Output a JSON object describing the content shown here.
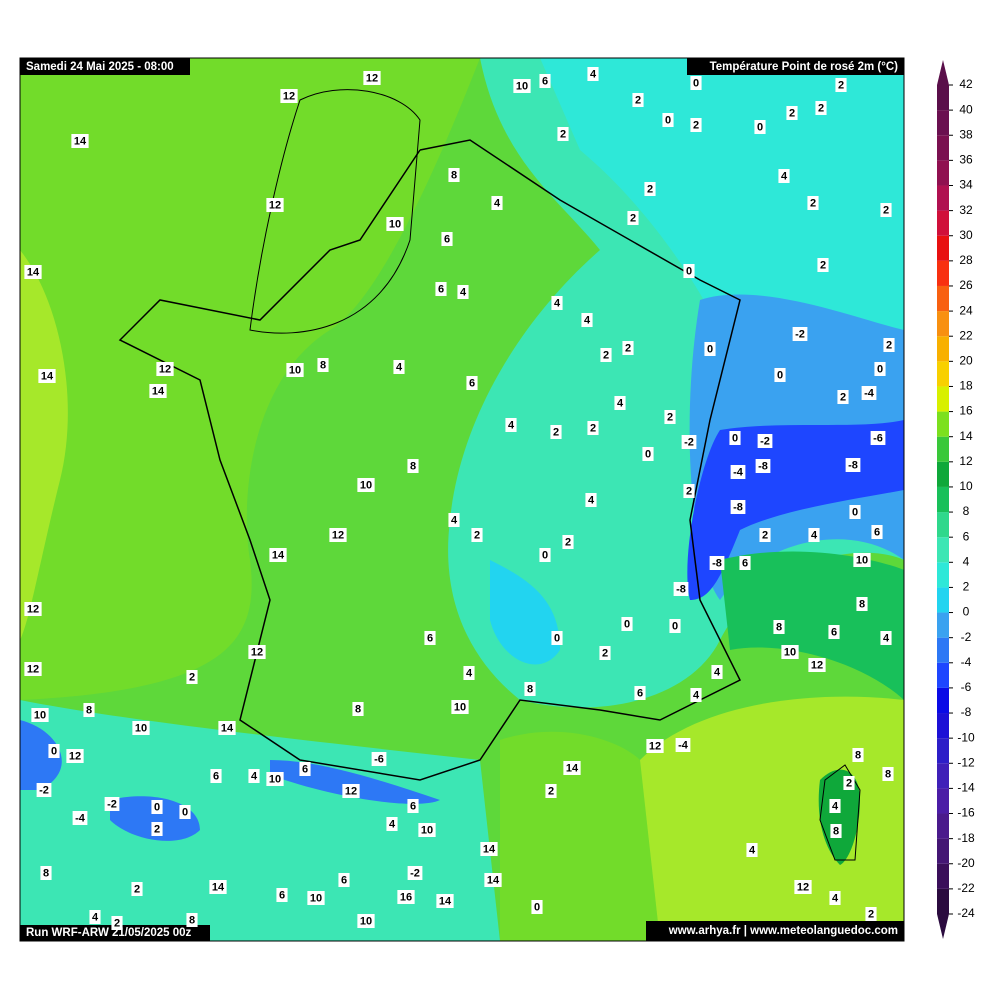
{
  "header": {
    "date": "Samedi 24 Mai 2025 - 08:00",
    "title": "Température Point de rosé 2m (°C)"
  },
  "footer": {
    "run": "Run WRF-ARW 21/05/2025 00z",
    "credits": "www.arhya.fr | www.meteolanguedoc.com"
  },
  "map": {
    "station_values": [
      12,
      10,
      6,
      4,
      0,
      2,
      12,
      2,
      0,
      2,
      0,
      2,
      2,
      14,
      2,
      8,
      4,
      2,
      4,
      2,
      2,
      12,
      10,
      2,
      6,
      2,
      14,
      0,
      6,
      4,
      4,
      4,
      -2,
      2,
      0,
      2,
      2,
      14,
      10,
      8,
      12,
      14,
      4,
      0,
      0,
      6,
      2,
      -4,
      4,
      2,
      4,
      2,
      2,
      -6,
      -2,
      0,
      -2,
      0,
      -4,
      -8,
      -8,
      8,
      10,
      2,
      4,
      -8,
      0,
      4,
      2,
      12,
      2,
      2,
      4,
      6,
      0,
      -8,
      6,
      10,
      14,
      -8,
      8,
      12,
      6,
      0,
      0,
      0,
      8,
      6,
      4,
      10,
      12,
      12,
      2,
      12,
      4,
      4,
      2,
      8,
      6,
      4,
      10,
      8,
      10,
      8,
      10,
      14,
      12,
      -4,
      0,
      12,
      8,
      -6,
      6,
      6,
      4,
      10,
      14,
      8,
      2,
      -2,
      12,
      2,
      -2,
      0,
      0,
      6,
      4,
      -4,
      2,
      4,
      10,
      8,
      14,
      4,
      8,
      6,
      -2,
      2,
      14,
      14,
      12,
      4,
      6,
      10,
      16,
      14,
      0,
      4,
      2,
      8,
      10,
      2
    ]
  },
  "colorbar": {
    "ticks": [
      -24,
      -22,
      -20,
      -18,
      -16,
      -14,
      -12,
      -10,
      -8,
      -6,
      -4,
      -2,
      0,
      2,
      4,
      6,
      8,
      10,
      12,
      14,
      16,
      18,
      20,
      22,
      24,
      26,
      28,
      30,
      32,
      34,
      36,
      38,
      40,
      42
    ],
    "colors": [
      "#2b0b3f",
      "#3a0f5a",
      "#441674",
      "#4a1a8c",
      "#4b1da6",
      "#3f20b8",
      "#2d1ec8",
      "#1c10d6",
      "#0a0ae6",
      "#1e46ff",
      "#2d78f5",
      "#3aa2f0",
      "#22d4f0",
      "#2ee8d8",
      "#3ce6b4",
      "#2fd88c",
      "#18c05a",
      "#0fa83a",
      "#3ac83a",
      "#7ce01e",
      "#d8f000",
      "#f8d000",
      "#f8b000",
      "#f89010",
      "#f86010",
      "#f83010",
      "#e81010",
      "#d0103a",
      "#b01050",
      "#901050",
      "#7a1050",
      "#6a1050",
      "#5a0f4a"
    ]
  }
}
